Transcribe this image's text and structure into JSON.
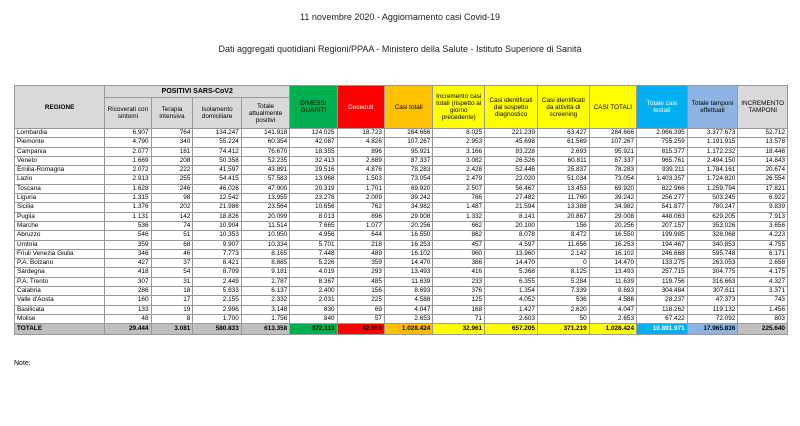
{
  "header": {
    "title": "11 novembre 2020 - Aggiornamento casi Covid-19",
    "subtitle": "Dati aggregati quotidiani Regioni/PPAA - Ministero della Salute - Istituto Superiore di Sanità"
  },
  "table": {
    "region_header": "REGIONE",
    "group_header": "POSITIVI SARS-CoV2",
    "columns": [
      "Ricoverati con sintomi",
      "Terapia intensiva",
      "Isolamento domiciliare",
      "Totale attualmente positivi",
      "DIMESSI GUARITI",
      "Deceduti",
      "Casi totali",
      "Incremento casi totali (rispetto al giorno precedente)",
      "Casi identificati dal sospetto diagnostico",
      "Casi identificati da attività di screening",
      "CASI TOTALI",
      "Totale casi testati",
      "Totale tamponi effettuati",
      "INCREMENTO TAMPONI"
    ],
    "rows": [
      [
        "Lombardia",
        "6.907",
        "764",
        "134.247",
        "141.918",
        "124.025",
        "18.723",
        "284.666",
        "8.025",
        "221.239",
        "63.427",
        "284.666",
        "2.066.395",
        "3.377.673",
        "52.712"
      ],
      [
        "Piemonte",
        "4.790",
        "340",
        "55.224",
        "60.354",
        "42.087",
        "4.826",
        "107.267",
        "2.953",
        "45.698",
        "61.569",
        "107.267",
        "755.259",
        "1.191.915",
        "13.578"
      ],
      [
        "Campania",
        "2.077",
        "181",
        "74.412",
        "76.670",
        "18.355",
        "896",
        "95.921",
        "3.166",
        "93.228",
        "2.693",
        "95.921",
        "815.377",
        "1.172.232",
        "18.446"
      ],
      [
        "Veneto",
        "1.669",
        "208",
        "50.358",
        "52.235",
        "32.413",
        "2.689",
        "87.337",
        "3.082",
        "26.526",
        "60.811",
        "87.337",
        "965.761",
        "2.494.150",
        "14.843"
      ],
      [
        "Emilia-Romagna",
        "2.072",
        "222",
        "41.597",
        "43.891",
        "29.516",
        "4.876",
        "78.283",
        "2.428",
        "52.446",
        "25.837",
        "78.283",
        "939.211",
        "1.784.161",
        "20.674"
      ],
      [
        "Lazio",
        "2.913",
        "255",
        "54.415",
        "57.583",
        "13.968",
        "1.503",
        "73.054",
        "2.479",
        "22.020",
        "51.034",
        "73.054",
        "1.403.357",
        "1.724.820",
        "26.554"
      ],
      [
        "Toscana",
        "1.628",
        "246",
        "46.026",
        "47.900",
        "20.319",
        "1.701",
        "69.920",
        "2.507",
        "56.467",
        "13.453",
        "69.920",
        "822.966",
        "1.259.794",
        "17.821"
      ],
      [
        "Liguria",
        "1.315",
        "98",
        "12.542",
        "13.955",
        "23.278",
        "2.009",
        "39.242",
        "786",
        "27.482",
        "11.760",
        "39.242",
        "256.277",
        "503.245",
        "6.922"
      ],
      [
        "Sicilia",
        "1.376",
        "202",
        "21.986",
        "23.564",
        "10.656",
        "762",
        "34.982",
        "1.487",
        "21.594",
        "13.388",
        "34.982",
        "541.877",
        "780.247",
        "9.839"
      ],
      [
        "Puglia",
        "1.131",
        "142",
        "18.826",
        "20.099",
        "8.013",
        "896",
        "29.008",
        "1.332",
        "8.141",
        "20.867",
        "29.008",
        "448.063",
        "629.205",
        "7.913"
      ],
      [
        "Marche",
        "536",
        "74",
        "10.904",
        "11.514",
        "7.665",
        "1.077",
        "20.256",
        "662",
        "20.100",
        "156",
        "20.256",
        "207.157",
        "353.026",
        "3.656"
      ],
      [
        "Abruzzo",
        "546",
        "51",
        "10.353",
        "10.950",
        "4.956",
        "644",
        "16.550",
        "862",
        "8.078",
        "8.472",
        "16.550",
        "199.985",
        "328.068",
        "4.223"
      ],
      [
        "Umbria",
        "359",
        "68",
        "9.907",
        "10.334",
        "5.701",
        "218",
        "16.253",
        "457",
        "4.597",
        "11.656",
        "16.253",
        "194.467",
        "340.853",
        "4.755"
      ],
      [
        "Friuli Venezia Giulia",
        "346",
        "46",
        "7.773",
        "8.165",
        "7.448",
        "489",
        "16.102",
        "960",
        "13.960",
        "2.142",
        "16.102",
        "246.668",
        "595.748",
        "6.171"
      ],
      [
        "P.A. Bolzano",
        "427",
        "37",
        "8.421",
        "8.885",
        "5.226",
        "359",
        "14.470",
        "386",
        "14.470",
        "0",
        "14.470",
        "133.275",
        "263.053",
        "2.658"
      ],
      [
        "Sardegna",
        "418",
        "54",
        "8.709",
        "9.181",
        "4.019",
        "293",
        "13.493",
        "416",
        "5.368",
        "8.125",
        "13.493",
        "257.715",
        "304.775",
        "4.175"
      ],
      [
        "P.A. Trento",
        "307",
        "31",
        "2.449",
        "2.787",
        "8.367",
        "485",
        "11.639",
        "233",
        "6.355",
        "5.284",
        "11.639",
        "119.756",
        "316.663",
        "4.327"
      ],
      [
        "Calabria",
        "286",
        "18",
        "5.833",
        "6.137",
        "2.400",
        "156",
        "8.693",
        "376",
        "1.354",
        "7.339",
        "8.693",
        "304.484",
        "307.611",
        "3.371"
      ],
      [
        "Valle d'Aosta",
        "160",
        "17",
        "2.155",
        "2.332",
        "2.031",
        "225",
        "4.588",
        "125",
        "4.052",
        "536",
        "4.588",
        "28.237",
        "47.373",
        "743"
      ],
      [
        "Basilicata",
        "133",
        "19",
        "2.996",
        "3.148",
        "830",
        "69",
        "4.047",
        "168",
        "1.427",
        "2.620",
        "4.047",
        "118.262",
        "119.132",
        "1.456"
      ],
      [
        "Molise",
        "48",
        "8",
        "1.700",
        "1.756",
        "840",
        "57",
        "2.653",
        "71",
        "2.603",
        "50",
        "2.653",
        "67.422",
        "72.092",
        "803"
      ]
    ],
    "total": [
      "TOTALE",
      "29.444",
      "3.081",
      "580.833",
      "613.358",
      "372.113",
      "42.953",
      "1.028.424",
      "32.961",
      "657.205",
      "371.219",
      "1.028.424",
      "10.891.971",
      "17.965.836",
      "225.640"
    ]
  },
  "note": "Note:"
}
